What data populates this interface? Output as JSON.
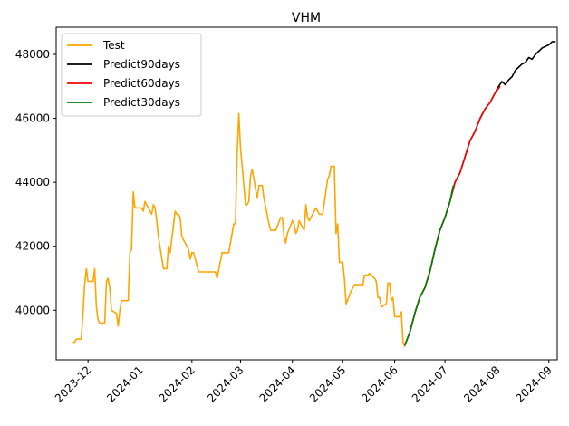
{
  "chart_data": {
    "type": "line",
    "title": "VHM",
    "xlabel": "",
    "ylabel": "",
    "x_is_date": true,
    "xlim": [
      "2023-11-12",
      "2024-09-06"
    ],
    "ylim": [
      38450,
      48850
    ],
    "x_ticks": [
      "2023-12",
      "2024-01",
      "2024-02",
      "2024-03",
      "2024-04",
      "2024-05",
      "2024-06",
      "2024-07",
      "2024-08",
      "2024-09"
    ],
    "y_ticks": [
      40000,
      42000,
      44000,
      46000,
      48000
    ],
    "grid": false,
    "legend_position": "top-left",
    "series": [
      {
        "name": "Test",
        "color": "#ffa500",
        "points": [
          [
            "2023-11-22",
            39000
          ],
          [
            "2023-11-23",
            39000
          ],
          [
            "2023-11-24",
            39100
          ],
          [
            "2023-11-27",
            39100
          ],
          [
            "2023-11-28",
            39900
          ],
          [
            "2023-11-29",
            40800
          ],
          [
            "2023-11-30",
            41300
          ],
          [
            "2023-12-01",
            40900
          ],
          [
            "2023-12-04",
            40900
          ],
          [
            "2023-12-05",
            41300
          ],
          [
            "2023-12-06",
            40100
          ],
          [
            "2023-12-07",
            39700
          ],
          [
            "2023-12-08",
            39600
          ],
          [
            "2023-12-11",
            39600
          ],
          [
            "2023-12-12",
            40900
          ],
          [
            "2023-12-13",
            41000
          ],
          [
            "2023-12-14",
            40700
          ],
          [
            "2023-12-15",
            40000
          ],
          [
            "2023-12-18",
            39900
          ],
          [
            "2023-12-19",
            39500
          ],
          [
            "2023-12-20",
            40000
          ],
          [
            "2023-12-21",
            40300
          ],
          [
            "2023-12-22",
            40300
          ],
          [
            "2023-12-25",
            40300
          ],
          [
            "2023-12-26",
            41800
          ],
          [
            "2023-12-27",
            41900
          ],
          [
            "2023-12-28",
            43700
          ],
          [
            "2023-12-29",
            43200
          ],
          [
            "2024-01-02",
            43200
          ],
          [
            "2024-01-03",
            43100
          ],
          [
            "2024-01-04",
            43400
          ],
          [
            "2024-01-05",
            43300
          ],
          [
            "2024-01-08",
            43000
          ],
          [
            "2024-01-09",
            43300
          ],
          [
            "2024-01-10",
            43200
          ],
          [
            "2024-01-11",
            42800
          ],
          [
            "2024-01-12",
            42300
          ],
          [
            "2024-01-15",
            41300
          ],
          [
            "2024-01-16",
            41300
          ],
          [
            "2024-01-17",
            41300
          ],
          [
            "2024-01-18",
            42000
          ],
          [
            "2024-01-19",
            41800
          ],
          [
            "2024-01-22",
            43100
          ],
          [
            "2024-01-23",
            43000
          ],
          [
            "2024-01-24",
            43000
          ],
          [
            "2024-01-25",
            42900
          ],
          [
            "2024-01-26",
            42300
          ],
          [
            "2024-01-29",
            42000
          ],
          [
            "2024-01-30",
            41900
          ],
          [
            "2024-01-31",
            41600
          ],
          [
            "2024-02-01",
            41800
          ],
          [
            "2024-02-02",
            41800
          ],
          [
            "2024-02-05",
            41200
          ],
          [
            "2024-02-06",
            41200
          ],
          [
            "2024-02-07",
            41200
          ],
          [
            "2024-02-15",
            41200
          ],
          [
            "2024-02-16",
            41000
          ],
          [
            "2024-02-19",
            41800
          ],
          [
            "2024-02-20",
            41800
          ],
          [
            "2024-02-21",
            41800
          ],
          [
            "2024-02-22",
            41800
          ],
          [
            "2024-02-23",
            41800
          ],
          [
            "2024-02-26",
            42700
          ],
          [
            "2024-02-27",
            42700
          ],
          [
            "2024-02-28",
            44900
          ],
          [
            "2024-02-29",
            46150
          ],
          [
            "2024-03-01",
            45100
          ],
          [
            "2024-03-04",
            43300
          ],
          [
            "2024-03-05",
            43300
          ],
          [
            "2024-03-06",
            43400
          ],
          [
            "2024-03-07",
            44200
          ],
          [
            "2024-03-08",
            44400
          ],
          [
            "2024-03-11",
            43500
          ],
          [
            "2024-03-12",
            43900
          ],
          [
            "2024-03-13",
            43900
          ],
          [
            "2024-03-14",
            43900
          ],
          [
            "2024-03-15",
            43500
          ],
          [
            "2024-03-18",
            42700
          ],
          [
            "2024-03-19",
            42500
          ],
          [
            "2024-03-20",
            42500
          ],
          [
            "2024-03-21",
            42500
          ],
          [
            "2024-03-22",
            42500
          ],
          [
            "2024-03-25",
            42900
          ],
          [
            "2024-03-26",
            42900
          ],
          [
            "2024-03-27",
            42300
          ],
          [
            "2024-03-28",
            42100
          ],
          [
            "2024-03-29",
            42400
          ],
          [
            "2024-04-01",
            42800
          ],
          [
            "2024-04-02",
            42700
          ],
          [
            "2024-04-03",
            42400
          ],
          [
            "2024-04-04",
            42500
          ],
          [
            "2024-04-05",
            42800
          ],
          [
            "2024-04-08",
            42500
          ],
          [
            "2024-04-09",
            43300
          ],
          [
            "2024-04-10",
            42900
          ],
          [
            "2024-04-11",
            42800
          ],
          [
            "2024-04-12",
            42900
          ],
          [
            "2024-04-15",
            43200
          ],
          [
            "2024-04-16",
            43100
          ],
          [
            "2024-04-17",
            43000
          ],
          [
            "2024-04-18",
            43000
          ],
          [
            "2024-04-19",
            43000
          ],
          [
            "2024-04-22",
            44100
          ],
          [
            "2024-04-23",
            44200
          ],
          [
            "2024-04-24",
            44500
          ],
          [
            "2024-04-25",
            44500
          ],
          [
            "2024-04-26",
            44500
          ],
          [
            "2024-04-27",
            42400
          ],
          [
            "2024-04-28",
            42700
          ],
          [
            "2024-04-29",
            41500
          ],
          [
            "2024-04-30",
            41500
          ],
          [
            "2024-05-01",
            41500
          ],
          [
            "2024-05-02",
            41000
          ],
          [
            "2024-05-03",
            40200
          ],
          [
            "2024-05-06",
            40600
          ],
          [
            "2024-05-07",
            40700
          ],
          [
            "2024-05-08",
            40800
          ],
          [
            "2024-05-09",
            40800
          ],
          [
            "2024-05-10",
            40800
          ],
          [
            "2024-05-13",
            40800
          ],
          [
            "2024-05-14",
            41100
          ],
          [
            "2024-05-15",
            41100
          ],
          [
            "2024-05-16",
            41100
          ],
          [
            "2024-05-17",
            41150
          ],
          [
            "2024-05-20",
            41000
          ],
          [
            "2024-05-21",
            40900
          ],
          [
            "2024-05-22",
            40400
          ],
          [
            "2024-05-23",
            40400
          ],
          [
            "2024-05-24",
            40100
          ],
          [
            "2024-05-27",
            40200
          ],
          [
            "2024-05-28",
            40850
          ],
          [
            "2024-05-29",
            40850
          ],
          [
            "2024-05-30",
            40300
          ],
          [
            "2024-05-31",
            40400
          ],
          [
            "2024-06-01",
            39800
          ],
          [
            "2024-06-02",
            39800
          ],
          [
            "2024-06-03",
            39800
          ],
          [
            "2024-06-04",
            39800
          ],
          [
            "2024-06-05",
            39950
          ],
          [
            "2024-06-06",
            39000
          ],
          [
            "2024-06-07",
            38850
          ]
        ]
      },
      {
        "name": "Predict90days",
        "color": "#000000",
        "points": [
          [
            "2024-06-07",
            38900
          ],
          [
            "2024-06-10",
            39300
          ],
          [
            "2024-06-13",
            39900
          ],
          [
            "2024-06-16",
            40400
          ],
          [
            "2024-06-19",
            40700
          ],
          [
            "2024-06-22",
            41200
          ],
          [
            "2024-06-25",
            41900
          ],
          [
            "2024-06-28",
            42500
          ],
          [
            "2024-07-01",
            42900
          ],
          [
            "2024-07-04",
            43400
          ],
          [
            "2024-07-07",
            44000
          ],
          [
            "2024-07-10",
            44300
          ],
          [
            "2024-07-13",
            44800
          ],
          [
            "2024-07-16",
            45300
          ],
          [
            "2024-07-19",
            45600
          ],
          [
            "2024-07-22",
            46000
          ],
          [
            "2024-07-25",
            46300
          ],
          [
            "2024-07-28",
            46500
          ],
          [
            "2024-07-31",
            46800
          ],
          [
            "2024-08-02",
            47000
          ],
          [
            "2024-08-04",
            47150
          ],
          [
            "2024-08-06",
            47050
          ],
          [
            "2024-08-08",
            47200
          ],
          [
            "2024-08-10",
            47300
          ],
          [
            "2024-08-12",
            47500
          ],
          [
            "2024-08-14",
            47600
          ],
          [
            "2024-08-16",
            47700
          ],
          [
            "2024-08-18",
            47750
          ],
          [
            "2024-08-20",
            47900
          ],
          [
            "2024-08-22",
            47850
          ],
          [
            "2024-08-24",
            48000
          ],
          [
            "2024-08-26",
            48100
          ],
          [
            "2024-08-28",
            48200
          ],
          [
            "2024-08-30",
            48250
          ],
          [
            "2024-09-01",
            48300
          ],
          [
            "2024-09-03",
            48400
          ],
          [
            "2024-09-05",
            48400
          ]
        ]
      },
      {
        "name": "Predict60days",
        "color": "#ff0000",
        "points": [
          [
            "2024-06-07",
            38900
          ],
          [
            "2024-06-10",
            39300
          ],
          [
            "2024-06-13",
            39900
          ],
          [
            "2024-06-16",
            40400
          ],
          [
            "2024-06-19",
            40700
          ],
          [
            "2024-06-22",
            41200
          ],
          [
            "2024-06-25",
            41900
          ],
          [
            "2024-06-28",
            42500
          ],
          [
            "2024-07-01",
            42900
          ],
          [
            "2024-07-04",
            43400
          ],
          [
            "2024-07-07",
            44000
          ],
          [
            "2024-07-10",
            44300
          ],
          [
            "2024-07-13",
            44800
          ],
          [
            "2024-07-16",
            45300
          ],
          [
            "2024-07-19",
            45600
          ],
          [
            "2024-07-22",
            46000
          ],
          [
            "2024-07-25",
            46300
          ],
          [
            "2024-07-28",
            46500
          ],
          [
            "2024-07-31",
            46800
          ],
          [
            "2024-08-03",
            47000
          ]
        ]
      },
      {
        "name": "Predict30days",
        "color": "#008000",
        "points": [
          [
            "2024-06-07",
            38900
          ],
          [
            "2024-06-10",
            39300
          ],
          [
            "2024-06-13",
            39900
          ],
          [
            "2024-06-16",
            40400
          ],
          [
            "2024-06-19",
            40700
          ],
          [
            "2024-06-22",
            41200
          ],
          [
            "2024-06-25",
            41900
          ],
          [
            "2024-06-28",
            42500
          ],
          [
            "2024-07-01",
            42900
          ],
          [
            "2024-07-04",
            43400
          ],
          [
            "2024-07-06",
            43900
          ]
        ]
      }
    ]
  }
}
